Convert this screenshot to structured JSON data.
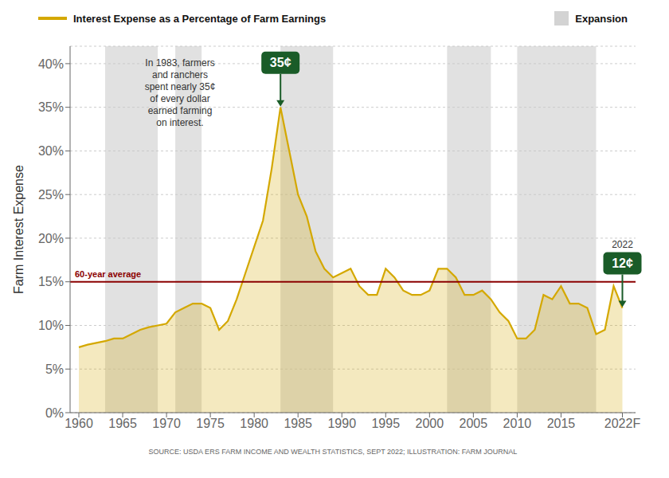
{
  "chart_data": {
    "type": "area",
    "x": [
      1960,
      1961,
      1962,
      1963,
      1964,
      1965,
      1966,
      1967,
      1968,
      1969,
      1970,
      1971,
      1972,
      1973,
      1974,
      1975,
      1976,
      1977,
      1978,
      1979,
      1980,
      1981,
      1982,
      1983,
      1984,
      1985,
      1986,
      1987,
      1988,
      1989,
      1990,
      1991,
      1992,
      1993,
      1994,
      1995,
      1996,
      1997,
      1998,
      1999,
      2000,
      2001,
      2002,
      2003,
      2004,
      2005,
      2006,
      2007,
      2008,
      2009,
      2010,
      2011,
      2012,
      2013,
      2014,
      2015,
      2016,
      2017,
      2018,
      2019,
      2020,
      2021,
      2022
    ],
    "series": [
      {
        "name": "Interest Expense as a Percentage of Farm Earnings",
        "color": "#D4A800",
        "values": [
          7.5,
          7.8,
          8.0,
          8.2,
          8.5,
          8.5,
          9.0,
          9.5,
          9.8,
          10.0,
          10.2,
          11.5,
          12.0,
          12.5,
          12.5,
          12.0,
          9.5,
          10.5,
          13.0,
          16.0,
          19.0,
          22.0,
          28.0,
          35.0,
          30.0,
          25.0,
          22.5,
          18.5,
          16.5,
          15.5,
          16.0,
          16.5,
          14.5,
          13.5,
          13.5,
          16.5,
          15.5,
          14.0,
          13.5,
          13.5,
          14.0,
          16.5,
          16.5,
          15.5,
          13.5,
          13.5,
          14.0,
          13.0,
          11.5,
          10.5,
          8.5,
          8.5,
          9.5,
          13.5,
          13.0,
          14.5,
          12.5,
          12.5,
          12.0,
          9.0,
          9.5,
          14.5,
          12.0
        ]
      }
    ],
    "xlim": [
      1959,
      2023.5
    ],
    "ylim": [
      0,
      42
    ],
    "xticks": [
      1960,
      1965,
      1970,
      1975,
      1980,
      1985,
      1990,
      1995,
      2000,
      2005,
      2010,
      2015,
      {
        "value": 2022,
        "label": "2022F"
      }
    ],
    "yticks": [
      {
        "value": 0,
        "label": "0%"
      },
      {
        "value": 5,
        "label": "5%"
      },
      {
        "value": 10,
        "label": "10%"
      },
      {
        "value": 15,
        "label": "15%"
      },
      {
        "value": 20,
        "label": "20%"
      },
      {
        "value": 25,
        "label": "25%"
      },
      {
        "value": 30,
        "label": "30%"
      },
      {
        "value": 35,
        "label": "35%"
      },
      {
        "value": 40,
        "label": "40%"
      }
    ],
    "ylabel": "Farm Interest Expense",
    "grid": "y",
    "legend": "top",
    "shaded_ranges": {
      "name": "Expansion",
      "color": "#C8C8C8",
      "ranges": [
        [
          1963,
          1969
        ],
        [
          1971,
          1974
        ],
        [
          1983,
          1989
        ],
        [
          2002,
          2007
        ],
        [
          2010,
          2019
        ]
      ]
    },
    "reference_line": {
      "value": 15.0,
      "label": "60-year average",
      "color": "#8B0000"
    },
    "annotations": [
      {
        "text": "35¢",
        "x": 1983,
        "y": 35,
        "color": "#1A5C28"
      },
      {
        "text": "12¢",
        "x": 2022,
        "y": 12,
        "color": "#1A5C28",
        "heading": "2022"
      }
    ],
    "note": [
      "In 1983, farmers",
      "and ranchers",
      "spent nearly 35¢",
      "of every dollar",
      "earned farming",
      "on interest."
    ],
    "source": "SOURCE: USDA ERS FARM INCOME AND WEALTH STATISTICS, SEPT 2022; ILLUSTRATION: FARM JOURNAL"
  }
}
